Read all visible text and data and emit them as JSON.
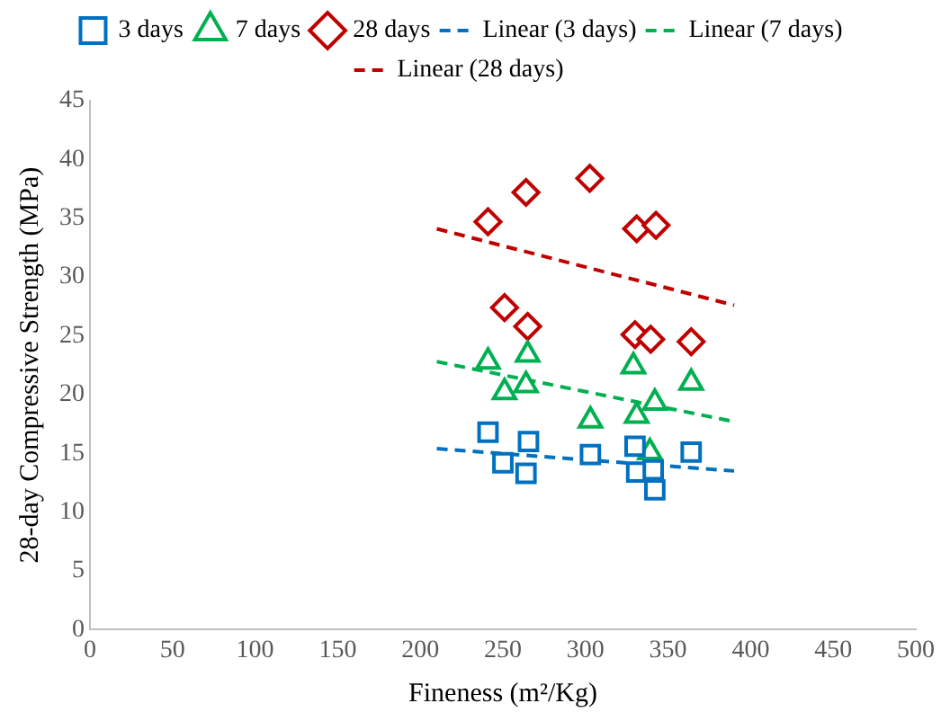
{
  "chart_data": {
    "type": "scatter",
    "xlabel": "Fineness (m²/Kg)",
    "ylabel": "28-day Compressive Strength (MPa)",
    "xlim": [
      0,
      500
    ],
    "xticks": [
      0,
      50,
      100,
      150,
      200,
      250,
      300,
      350,
      400,
      450,
      500
    ],
    "ylim": [
      0,
      45
    ],
    "yticks": [
      0,
      5,
      10,
      15,
      20,
      25,
      30,
      35,
      40,
      45
    ],
    "grid": false,
    "legend": "top",
    "series": [
      {
        "name": "3 days",
        "type": "scatter",
        "marker": "square",
        "color": "#0070c0",
        "x": [
          241,
          250,
          265.5,
          264,
          303,
          330,
          331,
          341,
          342,
          364
        ],
        "values": [
          16.8,
          14.2,
          16.0,
          13.3,
          14.9,
          15.6,
          13.4,
          13.6,
          11.9,
          15.1
        ]
      },
      {
        "name": "7 days",
        "type": "scatter",
        "marker": "triangle",
        "color": "#00b050",
        "x": [
          241,
          265,
          251,
          264,
          303,
          329,
          331,
          342,
          364,
          339
        ],
        "values": [
          22.8,
          23.4,
          20.2,
          20.8,
          17.8,
          22.4,
          18.2,
          19.3,
          21.0,
          15.1
        ]
      },
      {
        "name": "28 days",
        "type": "scatter",
        "marker": "diamond",
        "color": "#c00000",
        "x": [
          241,
          264,
          302.6,
          331,
          342.7,
          251,
          265,
          330,
          339.5,
          364
        ],
        "values": [
          34.7,
          37.2,
          38.4,
          34.1,
          34.4,
          27.4,
          25.8,
          25.1,
          24.7,
          24.5
        ]
      },
      {
        "name": "Linear (3 days)",
        "type": "line",
        "marker": "none",
        "line_style": "dashed",
        "color": "#0070c0",
        "x": [
          210,
          390
        ],
        "values": [
          15.4,
          13.5
        ]
      },
      {
        "name": "Linear (7 days)",
        "type": "line",
        "marker": "none",
        "line_style": "dashed",
        "color": "#00b050",
        "x": [
          210,
          390
        ],
        "values": [
          22.8,
          17.7
        ]
      },
      {
        "name": "Linear (28 days)",
        "type": "line",
        "marker": "none",
        "line_style": "dashed",
        "color": "#c00000",
        "x": [
          210,
          390
        ],
        "values": [
          34.1,
          27.6
        ]
      }
    ]
  }
}
